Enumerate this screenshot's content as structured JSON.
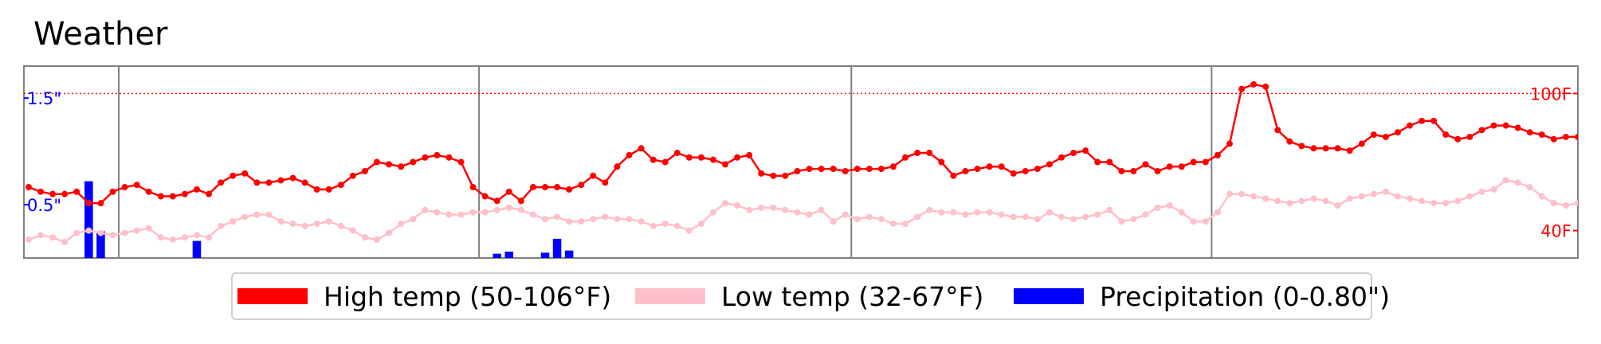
{
  "title": "Weather",
  "colors": {
    "high": "#ff0000",
    "low": "#ffc0cb",
    "precip": "#0000ff",
    "frame": "#808080"
  },
  "legend": {
    "high": "High temp (50-106°F)",
    "low": "Low temp (32-67°F)",
    "precip": "Precipitation (0-0.80\")"
  },
  "chart_data": {
    "type": "line",
    "title": "Weather",
    "n_days": 130,
    "temp_ylim": [
      28,
      112
    ],
    "precip_ylim": [
      0,
      1.8
    ],
    "grid": false,
    "legend_placement": "bottom-center",
    "month_boundary_days": [
      8,
      38,
      69,
      99
    ],
    "reference_line": {
      "axis": "temp",
      "value": 100,
      "style": "dotted",
      "color": "#ff0000"
    },
    "right_ticks": [
      {
        "value": 100,
        "label": "100F"
      },
      {
        "value": 40,
        "label": "40F"
      }
    ],
    "left_ticks": [
      {
        "value": 1.5,
        "label": "1.5\""
      },
      {
        "value": 0.5,
        "label": "0.5\""
      }
    ],
    "series": [
      {
        "name": "High temp (50-106°F)",
        "axis": "temp",
        "kind": "line",
        "color": "#ff0000",
        "values": [
          59,
          57,
          56,
          56,
          57,
          52,
          52,
          57,
          59,
          60,
          57,
          55,
          55,
          56,
          58,
          56,
          61,
          64,
          65,
          61,
          61,
          62,
          63,
          61,
          58,
          58,
          60,
          64,
          66,
          70,
          69,
          68,
          70,
          72,
          73,
          72,
          70,
          59,
          55,
          53,
          57,
          53,
          59,
          59,
          59,
          58,
          60,
          64,
          61,
          68,
          73,
          76,
          71,
          70,
          74,
          72,
          72,
          71,
          69,
          72,
          73,
          65,
          64,
          64,
          66,
          67,
          67,
          67,
          66,
          67,
          67,
          67,
          68,
          72,
          74,
          74,
          70,
          64,
          66,
          67,
          68,
          68,
          65,
          66,
          67,
          69,
          72,
          74,
          75,
          70,
          70,
          66,
          66,
          69,
          66,
          68,
          68,
          70,
          70,
          73,
          78,
          102,
          104,
          103,
          84,
          79,
          77,
          76,
          76,
          76,
          75,
          78,
          82,
          81,
          83,
          86,
          88,
          88,
          82,
          80,
          81,
          84,
          86,
          86,
          85,
          83,
          82,
          80,
          81,
          81
        ]
      },
      {
        "name": "Low temp (32-67°F)",
        "axis": "temp",
        "kind": "line",
        "color": "#ffc0cb",
        "values": [
          36,
          38,
          37,
          35,
          39,
          40,
          39,
          38,
          39,
          40,
          41,
          37,
          36,
          37,
          38,
          37,
          42,
          44,
          46,
          47,
          47,
          44,
          43,
          42,
          43,
          44,
          42,
          40,
          37,
          36,
          39,
          43,
          45,
          49,
          48,
          47,
          47,
          48,
          48,
          49,
          50,
          49,
          47,
          45,
          46,
          44,
          44,
          45,
          46,
          45,
          45,
          44,
          42,
          43,
          42,
          40,
          43,
          48,
          52,
          51,
          49,
          50,
          50,
          49,
          48,
          47,
          49,
          44,
          47,
          45,
          46,
          45,
          43,
          43,
          46,
          49,
          48,
          48,
          47,
          48,
          48,
          47,
          46,
          46,
          45,
          48,
          46,
          45,
          46,
          47,
          49,
          44,
          45,
          47,
          50,
          51,
          48,
          44,
          44,
          48,
          56,
          56,
          55,
          54,
          53,
          52,
          53,
          54,
          53,
          51,
          54,
          55,
          56,
          57,
          55,
          54,
          53,
          52,
          52,
          53,
          55,
          57,
          58,
          62,
          61,
          59,
          55,
          52,
          51,
          52
        ]
      },
      {
        "name": "Precipitation (0-0.80\")",
        "axis": "precip",
        "kind": "bar",
        "color": "#0000ff",
        "values": [
          0,
          0,
          0,
          0,
          0,
          0.72,
          0.25,
          0,
          0,
          0,
          0,
          0,
          0,
          0,
          0.16,
          0,
          0,
          0,
          0,
          0,
          0,
          0,
          0,
          0,
          0,
          0,
          0,
          0,
          0,
          0,
          0,
          0,
          0,
          0,
          0,
          0,
          0,
          0,
          0,
          0.04,
          0.06,
          0,
          0,
          0.05,
          0.18,
          0.07,
          0,
          0,
          0,
          0,
          0,
          0,
          0,
          0,
          0,
          0,
          0,
          0,
          0,
          0,
          0,
          0,
          0,
          0,
          0,
          0,
          0,
          0,
          0,
          0,
          0,
          0,
          0,
          0,
          0,
          0,
          0,
          0,
          0,
          0,
          0,
          0,
          0,
          0,
          0,
          0,
          0,
          0,
          0,
          0,
          0,
          0,
          0,
          0,
          0,
          0,
          0,
          0,
          0,
          0,
          0,
          0,
          0,
          0,
          0,
          0,
          0,
          0,
          0,
          0,
          0,
          0,
          0,
          0,
          0,
          0,
          0,
          0,
          0,
          0,
          0,
          0,
          0,
          0,
          0,
          0,
          0,
          0,
          0,
          0
        ]
      }
    ]
  }
}
